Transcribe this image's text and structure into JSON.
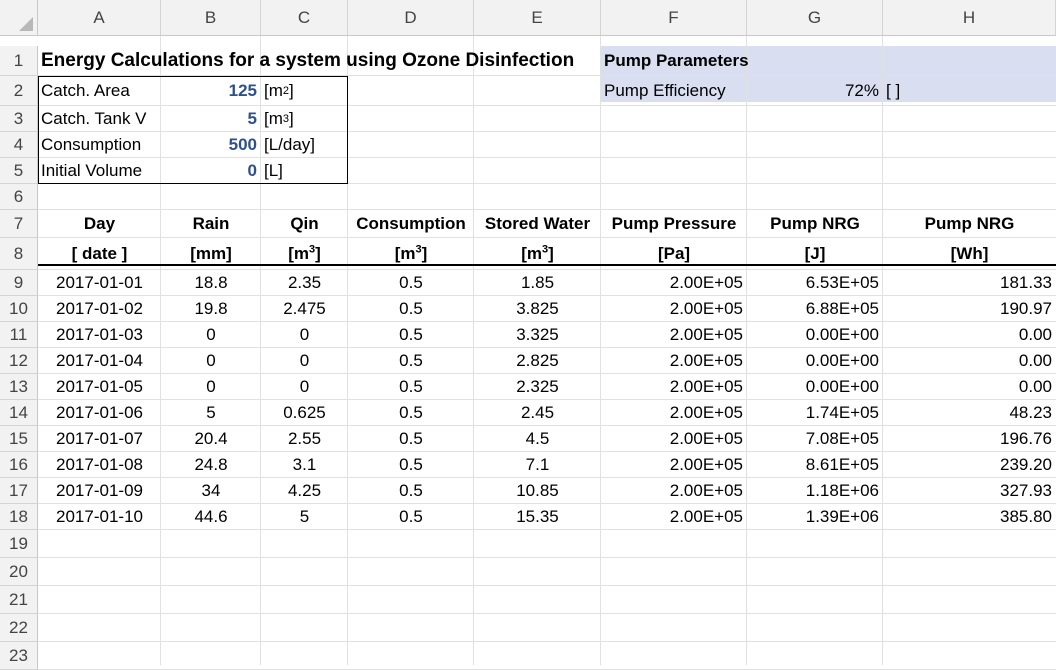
{
  "columns": [
    "A",
    "B",
    "C",
    "D",
    "E",
    "F",
    "G",
    "H"
  ],
  "rows": [
    "1",
    "2",
    "3",
    "4",
    "5",
    "6",
    "7",
    "8",
    "9",
    "10",
    "11",
    "12",
    "13",
    "14",
    "15",
    "16",
    "17",
    "18",
    "19",
    "20",
    "21",
    "22",
    "23"
  ],
  "title": "Energy Calculations for a system using Ozone Disinfection",
  "params": [
    {
      "label": "Catch. Area",
      "value": "125",
      "unit_pre": "[m",
      "unit_sup": "2",
      "unit_post": "]"
    },
    {
      "label": "Catch. Tank V",
      "value": "5",
      "unit_pre": "[m",
      "unit_sup": "3",
      "unit_post": "]"
    },
    {
      "label": "Consumption",
      "value": "500",
      "unit_pre": "[L/day]",
      "unit_sup": "",
      "unit_post": ""
    },
    {
      "label": "Initial Volume",
      "value": "0",
      "unit_pre": "[L]",
      "unit_sup": "",
      "unit_post": ""
    }
  ],
  "pump": {
    "header": "Pump Parameters",
    "efficiency_label": "Pump Efficiency",
    "efficiency_value": "72%",
    "efficiency_unit": "[ ]"
  },
  "table_headers": [
    "Day",
    "Rain",
    "Qin",
    "Consumption",
    "Stored Water",
    "Pump Pressure",
    "Pump NRG",
    "Pump NRG"
  ],
  "table_units": [
    {
      "pre": "[ date ]",
      "sup": "",
      "post": ""
    },
    {
      "pre": "[mm]",
      "sup": "",
      "post": ""
    },
    {
      "pre": "[m",
      "sup": "3",
      "post": "]"
    },
    {
      "pre": "[m",
      "sup": "3",
      "post": "]"
    },
    {
      "pre": "[m",
      "sup": "3",
      "post": "]"
    },
    {
      "pre": "[Pa]",
      "sup": "",
      "post": ""
    },
    {
      "pre": "[J]",
      "sup": "",
      "post": ""
    },
    {
      "pre": "[Wh]",
      "sup": "",
      "post": ""
    }
  ],
  "table_rows": [
    [
      "2017-01-01",
      "18.8",
      "2.35",
      "0.5",
      "1.85",
      "2.00E+05",
      "6.53E+05",
      "181.33"
    ],
    [
      "2017-01-02",
      "19.8",
      "2.475",
      "0.5",
      "3.825",
      "2.00E+05",
      "6.88E+05",
      "190.97"
    ],
    [
      "2017-01-03",
      "0",
      "0",
      "0.5",
      "3.325",
      "2.00E+05",
      "0.00E+00",
      "0.00"
    ],
    [
      "2017-01-04",
      "0",
      "0",
      "0.5",
      "2.825",
      "2.00E+05",
      "0.00E+00",
      "0.00"
    ],
    [
      "2017-01-05",
      "0",
      "0",
      "0.5",
      "2.325",
      "2.00E+05",
      "0.00E+00",
      "0.00"
    ],
    [
      "2017-01-06",
      "5",
      "0.625",
      "0.5",
      "2.45",
      "2.00E+05",
      "1.74E+05",
      "48.23"
    ],
    [
      "2017-01-07",
      "20.4",
      "2.55",
      "0.5",
      "4.5",
      "2.00E+05",
      "7.08E+05",
      "196.76"
    ],
    [
      "2017-01-08",
      "24.8",
      "3.1",
      "0.5",
      "7.1",
      "2.00E+05",
      "8.61E+05",
      "239.20"
    ],
    [
      "2017-01-09",
      "34",
      "4.25",
      "0.5",
      "10.85",
      "2.00E+05",
      "1.18E+06",
      "327.93"
    ],
    [
      "2017-01-10",
      "44.6",
      "5",
      "0.5",
      "15.35",
      "2.00E+05",
      "1.39E+06",
      "385.80"
    ]
  ],
  "colors": {
    "accent_blue": "#2f4f8f",
    "pump_fill": "#d9dff0",
    "header_gray": "#f2f2f2"
  }
}
